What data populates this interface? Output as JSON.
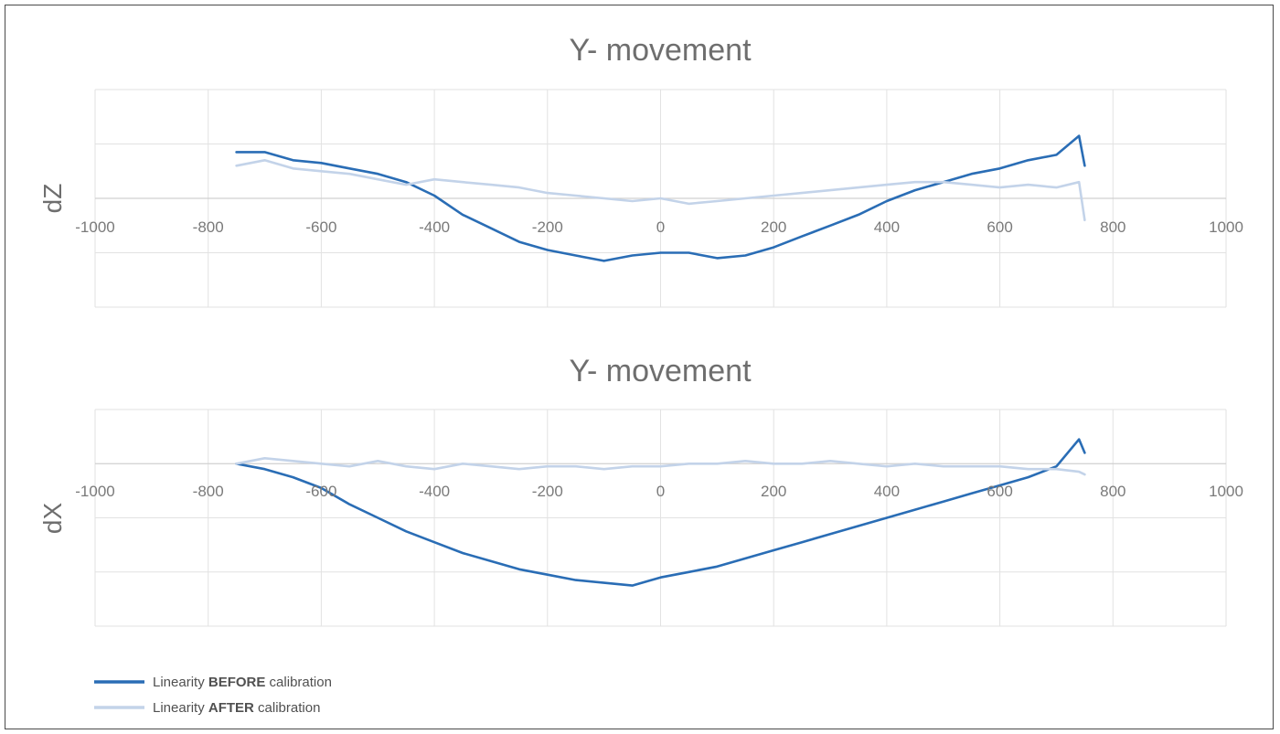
{
  "chart_data": [
    {
      "type": "line",
      "title": "Y- movement",
      "ylabel": "dZ",
      "xlabel": "",
      "xlim": [
        -1000,
        1000
      ],
      "x_ticks": [
        "-1000",
        "-800",
        "-600",
        "-400",
        "-200",
        "0",
        "200",
        "400",
        "600",
        "800",
        "1000"
      ],
      "ylim": [
        -2,
        2
      ],
      "grid": true,
      "series": [
        {
          "name": "Linearity BEFORE calibration",
          "color": "#2a6db5",
          "x": [
            -750,
            -700,
            -650,
            -600,
            -550,
            -500,
            -450,
            -400,
            -350,
            -300,
            -250,
            -200,
            -150,
            -100,
            -50,
            0,
            50,
            100,
            150,
            200,
            250,
            300,
            350,
            400,
            450,
            500,
            550,
            600,
            650,
            700,
            740,
            750
          ],
          "values": [
            0.85,
            0.85,
            0.7,
            0.65,
            0.55,
            0.45,
            0.3,
            0.05,
            -0.3,
            -0.55,
            -0.8,
            -0.95,
            -1.05,
            -1.15,
            -1.05,
            -1.0,
            -1.0,
            -1.1,
            -1.05,
            -0.9,
            -0.7,
            -0.5,
            -0.3,
            -0.05,
            0.15,
            0.3,
            0.45,
            0.55,
            0.7,
            0.8,
            1.15,
            0.6
          ]
        },
        {
          "name": "Linearity AFTER calibration",
          "color": "#c3d3e9",
          "x": [
            -750,
            -700,
            -650,
            -600,
            -550,
            -500,
            -450,
            -400,
            -350,
            -300,
            -250,
            -200,
            -150,
            -100,
            -50,
            0,
            50,
            100,
            150,
            200,
            250,
            300,
            350,
            400,
            450,
            500,
            550,
            600,
            650,
            700,
            740,
            750
          ],
          "values": [
            0.6,
            0.7,
            0.55,
            0.5,
            0.45,
            0.35,
            0.25,
            0.35,
            0.3,
            0.25,
            0.2,
            0.1,
            0.05,
            0.0,
            -0.05,
            0.0,
            -0.1,
            -0.05,
            0.0,
            0.05,
            0.1,
            0.15,
            0.2,
            0.25,
            0.3,
            0.3,
            0.25,
            0.2,
            0.25,
            0.2,
            0.3,
            -0.4
          ]
        }
      ]
    },
    {
      "type": "line",
      "title": "Y- movement",
      "ylabel": "dX",
      "xlabel": "",
      "xlim": [
        -1000,
        1000
      ],
      "x_ticks": [
        "-1000",
        "-800",
        "-600",
        "-400",
        "-200",
        "0",
        "200",
        "400",
        "600",
        "800",
        "1000"
      ],
      "ylim": [
        -3,
        1
      ],
      "grid": true,
      "series": [
        {
          "name": "Linearity BEFORE calibration",
          "color": "#2a6db5",
          "x": [
            -750,
            -700,
            -650,
            -600,
            -550,
            -500,
            -450,
            -400,
            -350,
            -300,
            -250,
            -200,
            -150,
            -100,
            -50,
            0,
            50,
            100,
            150,
            200,
            250,
            300,
            350,
            400,
            450,
            500,
            550,
            600,
            650,
            700,
            740,
            750
          ],
          "values": [
            0.0,
            -0.1,
            -0.25,
            -0.45,
            -0.75,
            -1.0,
            -1.25,
            -1.45,
            -1.65,
            -1.8,
            -1.95,
            -2.05,
            -2.15,
            -2.2,
            -2.25,
            -2.1,
            -2.0,
            -1.9,
            -1.75,
            -1.6,
            -1.45,
            -1.3,
            -1.15,
            -1.0,
            -0.85,
            -0.7,
            -0.55,
            -0.4,
            -0.25,
            -0.05,
            0.45,
            0.2
          ]
        },
        {
          "name": "Linearity AFTER calibration",
          "color": "#c3d3e9",
          "x": [
            -750,
            -700,
            -650,
            -600,
            -550,
            -500,
            -450,
            -400,
            -350,
            -300,
            -250,
            -200,
            -150,
            -100,
            -50,
            0,
            50,
            100,
            150,
            200,
            250,
            300,
            350,
            400,
            450,
            500,
            550,
            600,
            650,
            700,
            740,
            750
          ],
          "values": [
            0.0,
            0.1,
            0.05,
            0.0,
            -0.05,
            0.05,
            -0.05,
            -0.1,
            0.0,
            -0.05,
            -0.1,
            -0.05,
            -0.05,
            -0.1,
            -0.05,
            -0.05,
            0.0,
            0.0,
            0.05,
            0.0,
            0.0,
            0.05,
            0.0,
            -0.05,
            0.0,
            -0.05,
            -0.05,
            -0.05,
            -0.1,
            -0.1,
            -0.15,
            -0.2
          ]
        }
      ]
    }
  ],
  "legend": [
    {
      "prefix": "Linearity ",
      "bold": "BEFORE",
      "suffix": " calibration",
      "color": "#2a6db5"
    },
    {
      "prefix": "Linearity ",
      "bold": "AFTER",
      "suffix": " calibration",
      "color": "#c3d3e9"
    }
  ]
}
